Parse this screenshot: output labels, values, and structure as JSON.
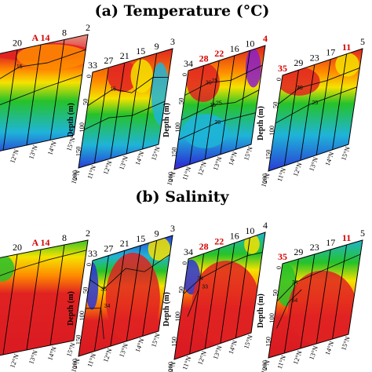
{
  "titles": {
    "temperature": "(a) Temperature (°C)",
    "salinity": "(b) Salinity"
  },
  "ylabel": "Depth (m)",
  "depth_ticks": [
    "0",
    "50",
    "100",
    "150",
    "200"
  ],
  "lat_ticks": [
    "10°N",
    "11°N",
    "12°N",
    "13°N",
    "14°N",
    "15°N"
  ],
  "colors": {
    "highlight": "#d40000",
    "warm": "#e0202a",
    "orange": "#ff8c00",
    "yellow": "#f5e200",
    "green": "#26c22a",
    "cyan": "#1fb4d8",
    "blue": "#2a35d6",
    "violet": "#8a20c8"
  },
  "chart_data": [
    {
      "type": "heatmap",
      "title": "(a) Temperature (°C)",
      "panels": [
        {
          "transect": 1,
          "stations": [
            {
              "label": "26",
              "hl": false
            },
            {
              "label": "20",
              "hl": false
            },
            {
              "label": "A 14",
              "hl": true
            },
            {
              "label": "8",
              "hl": false
            },
            {
              "label": "2",
              "hl": false
            }
          ],
          "contour_labels": [
            "15"
          ],
          "ylim": [
            200,
            0
          ]
        },
        {
          "transect": 2,
          "stations": [
            {
              "label": "33",
              "hl": false
            },
            {
              "label": "27",
              "hl": false
            },
            {
              "label": "21",
              "hl": false
            },
            {
              "label": "15",
              "hl": false
            },
            {
              "label": "9",
              "hl": false
            },
            {
              "label": "3",
              "hl": false
            }
          ],
          "contour_labels": [
            "15"
          ],
          "ylim": [
            200,
            0
          ]
        },
        {
          "transect": 3,
          "stations": [
            {
              "label": "34",
              "hl": false
            },
            {
              "label": "28",
              "hl": true
            },
            {
              "label": "22",
              "hl": true
            },
            {
              "label": "16",
              "hl": false
            },
            {
              "label": "10",
              "hl": false
            },
            {
              "label": "4",
              "hl": true
            }
          ],
          "contour_labels": [
            "30",
            "25",
            "20",
            "25",
            "15"
          ],
          "ylim": [
            200,
            0
          ]
        },
        {
          "transect": 4,
          "stations": [
            {
              "label": "35",
              "hl": true
            },
            {
              "label": "29",
              "hl": false
            },
            {
              "label": "23",
              "hl": false
            },
            {
              "label": "17",
              "hl": false
            },
            {
              "label": "11",
              "hl": true
            },
            {
              "label": "5",
              "hl": false
            }
          ],
          "contour_labels": [
            "30",
            "25",
            "20"
          ],
          "ylim": [
            200,
            0
          ]
        }
      ]
    },
    {
      "type": "heatmap",
      "title": "(b) Salinity",
      "panels": [
        {
          "transect": 1,
          "stations": [
            {
              "label": "26",
              "hl": false
            },
            {
              "label": "20",
              "hl": false
            },
            {
              "label": "A 14",
              "hl": true
            },
            {
              "label": "8",
              "hl": false
            },
            {
              "label": "2",
              "hl": false
            }
          ],
          "contour_labels": [],
          "ylim": [
            200,
            0
          ]
        },
        {
          "transect": 2,
          "stations": [
            {
              "label": "33",
              "hl": false
            },
            {
              "label": "27",
              "hl": false
            },
            {
              "label": "21",
              "hl": false
            },
            {
              "label": "15",
              "hl": false
            },
            {
              "label": "9",
              "hl": false
            },
            {
              "label": "3",
              "hl": false
            }
          ],
          "contour_labels": [
            "33",
            "34"
          ],
          "ylim": [
            200,
            0
          ]
        },
        {
          "transect": 3,
          "stations": [
            {
              "label": "34",
              "hl": false
            },
            {
              "label": "28",
              "hl": true
            },
            {
              "label": "22",
              "hl": true
            },
            {
              "label": "16",
              "hl": false
            },
            {
              "label": "10",
              "hl": false
            },
            {
              "label": "4",
              "hl": false
            }
          ],
          "contour_labels": [
            "34",
            "33"
          ],
          "ylim": [
            200,
            0
          ]
        },
        {
          "transect": 4,
          "stations": [
            {
              "label": "35",
              "hl": true
            },
            {
              "label": "29",
              "hl": false
            },
            {
              "label": "23",
              "hl": false
            },
            {
              "label": "17",
              "hl": false
            },
            {
              "label": "11",
              "hl": true
            },
            {
              "label": "5",
              "hl": false
            }
          ],
          "contour_labels": [
            "34",
            "34"
          ],
          "ylim": [
            200,
            0
          ]
        }
      ]
    }
  ]
}
